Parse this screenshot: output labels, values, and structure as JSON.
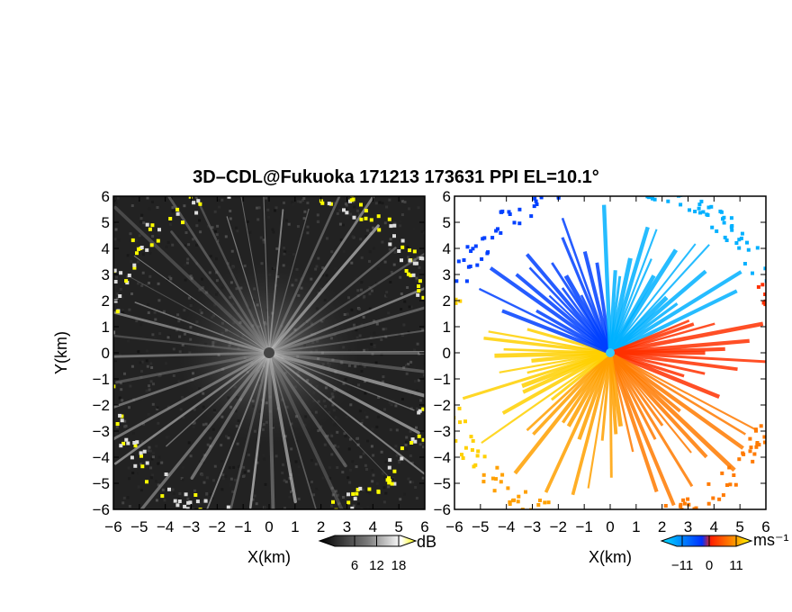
{
  "title": "3D–CDL@Fukuoka 171213 173631 PPI EL=10.1°",
  "chart_data": [
    {
      "type": "heatmap",
      "name_panel": "left",
      "quantity": "intensity",
      "xlabel": "X(km)",
      "ylabel": "Y(km)",
      "xlim": [
        -6,
        6
      ],
      "ylim": [
        -6,
        6
      ],
      "xticks": [
        -6,
        -5,
        -4,
        -3,
        -2,
        -1,
        0,
        1,
        2,
        3,
        4,
        5,
        6
      ],
      "yticks": [
        -6,
        -5,
        -4,
        -3,
        -2,
        -1,
        0,
        1,
        2,
        3,
        4,
        5,
        6
      ],
      "xtick_labels": [
        "−6",
        "−5",
        "−4",
        "−3",
        "−2",
        "−1",
        "0",
        "1",
        "2",
        "3",
        "4",
        "5",
        "6"
      ],
      "ytick_labels": [
        "−6",
        "−5",
        "−4",
        "−3",
        "−2",
        "−1",
        "0",
        "1",
        "2",
        "3",
        "4",
        "5",
        "6"
      ],
      "colorbar": {
        "unit": "dB",
        "ticks": [
          6,
          12,
          18
        ],
        "tick_labels": [
          "6",
          "12",
          "18"
        ],
        "colormap": [
          "#000000",
          "#ffffff",
          "#ffff00"
        ]
      }
    },
    {
      "type": "heatmap",
      "name_panel": "right",
      "quantity": "radial velocity",
      "xlabel": "X(km)",
      "ylabel": "",
      "xlim": [
        -6,
        6
      ],
      "ylim": [
        -6,
        6
      ],
      "xticks": [
        -6,
        -5,
        -4,
        -3,
        -2,
        -1,
        0,
        1,
        2,
        3,
        4,
        5,
        6
      ],
      "yticks": [
        -6,
        -5,
        -4,
        -3,
        -2,
        -1,
        0,
        1,
        2,
        3,
        4,
        5,
        6
      ],
      "xtick_labels": [
        "−6",
        "−5",
        "−4",
        "−3",
        "−2",
        "−1",
        "0",
        "1",
        "2",
        "3",
        "4",
        "5",
        "6"
      ],
      "ytick_labels": [
        "−6",
        "−5",
        "−4",
        "−3",
        "−2",
        "−1",
        "0",
        "1",
        "2",
        "3",
        "4",
        "5",
        "6"
      ],
      "colorbar": {
        "unit": "ms⁻¹",
        "ticks": [
          -11,
          0,
          11
        ],
        "tick_labels": [
          "−11",
          "0",
          "11"
        ],
        "colormap": [
          "#00e0ff",
          "#0040ff",
          "#ff2000",
          "#ffa000",
          "#ffff00"
        ]
      }
    }
  ]
}
